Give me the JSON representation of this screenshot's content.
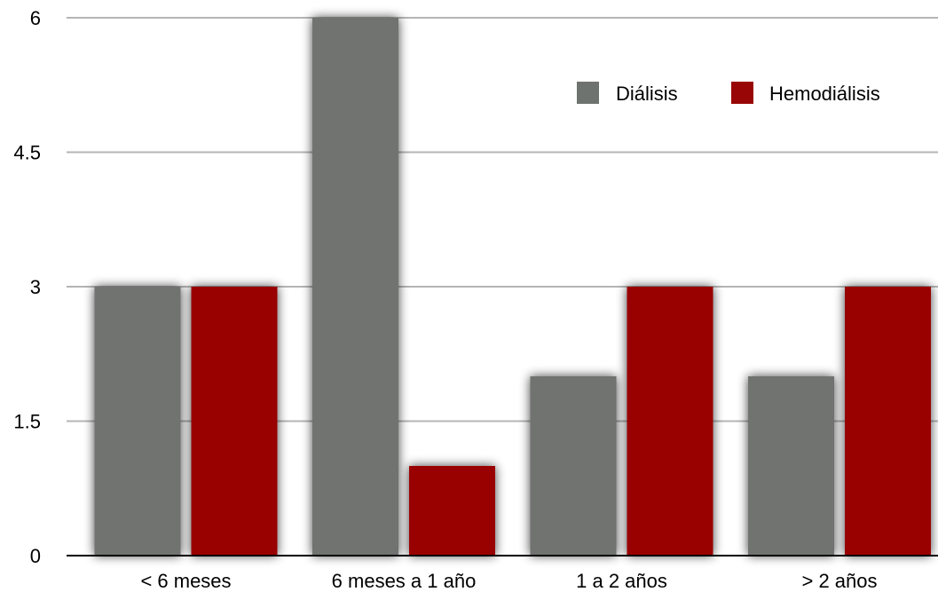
{
  "chart_data": {
    "type": "bar",
    "categories": [
      "< 6 meses",
      "6 meses a 1 año",
      "1 a 2 años",
      "> 2 años"
    ],
    "series": [
      {
        "name": "Diálisis",
        "values": [
          3,
          6,
          2,
          2
        ],
        "color": "#6f7370"
      },
      {
        "name": "Hemodiálisis",
        "values": [
          3,
          1,
          3,
          3
        ],
        "color": "#990606"
      }
    ],
    "yticks": [
      "0",
      "1.5",
      "3",
      "4.5",
      "6"
    ],
    "ylim": [
      0,
      6
    ],
    "grid": true,
    "legend": "top-right",
    "title": "",
    "xlabel": "",
    "ylabel": ""
  }
}
